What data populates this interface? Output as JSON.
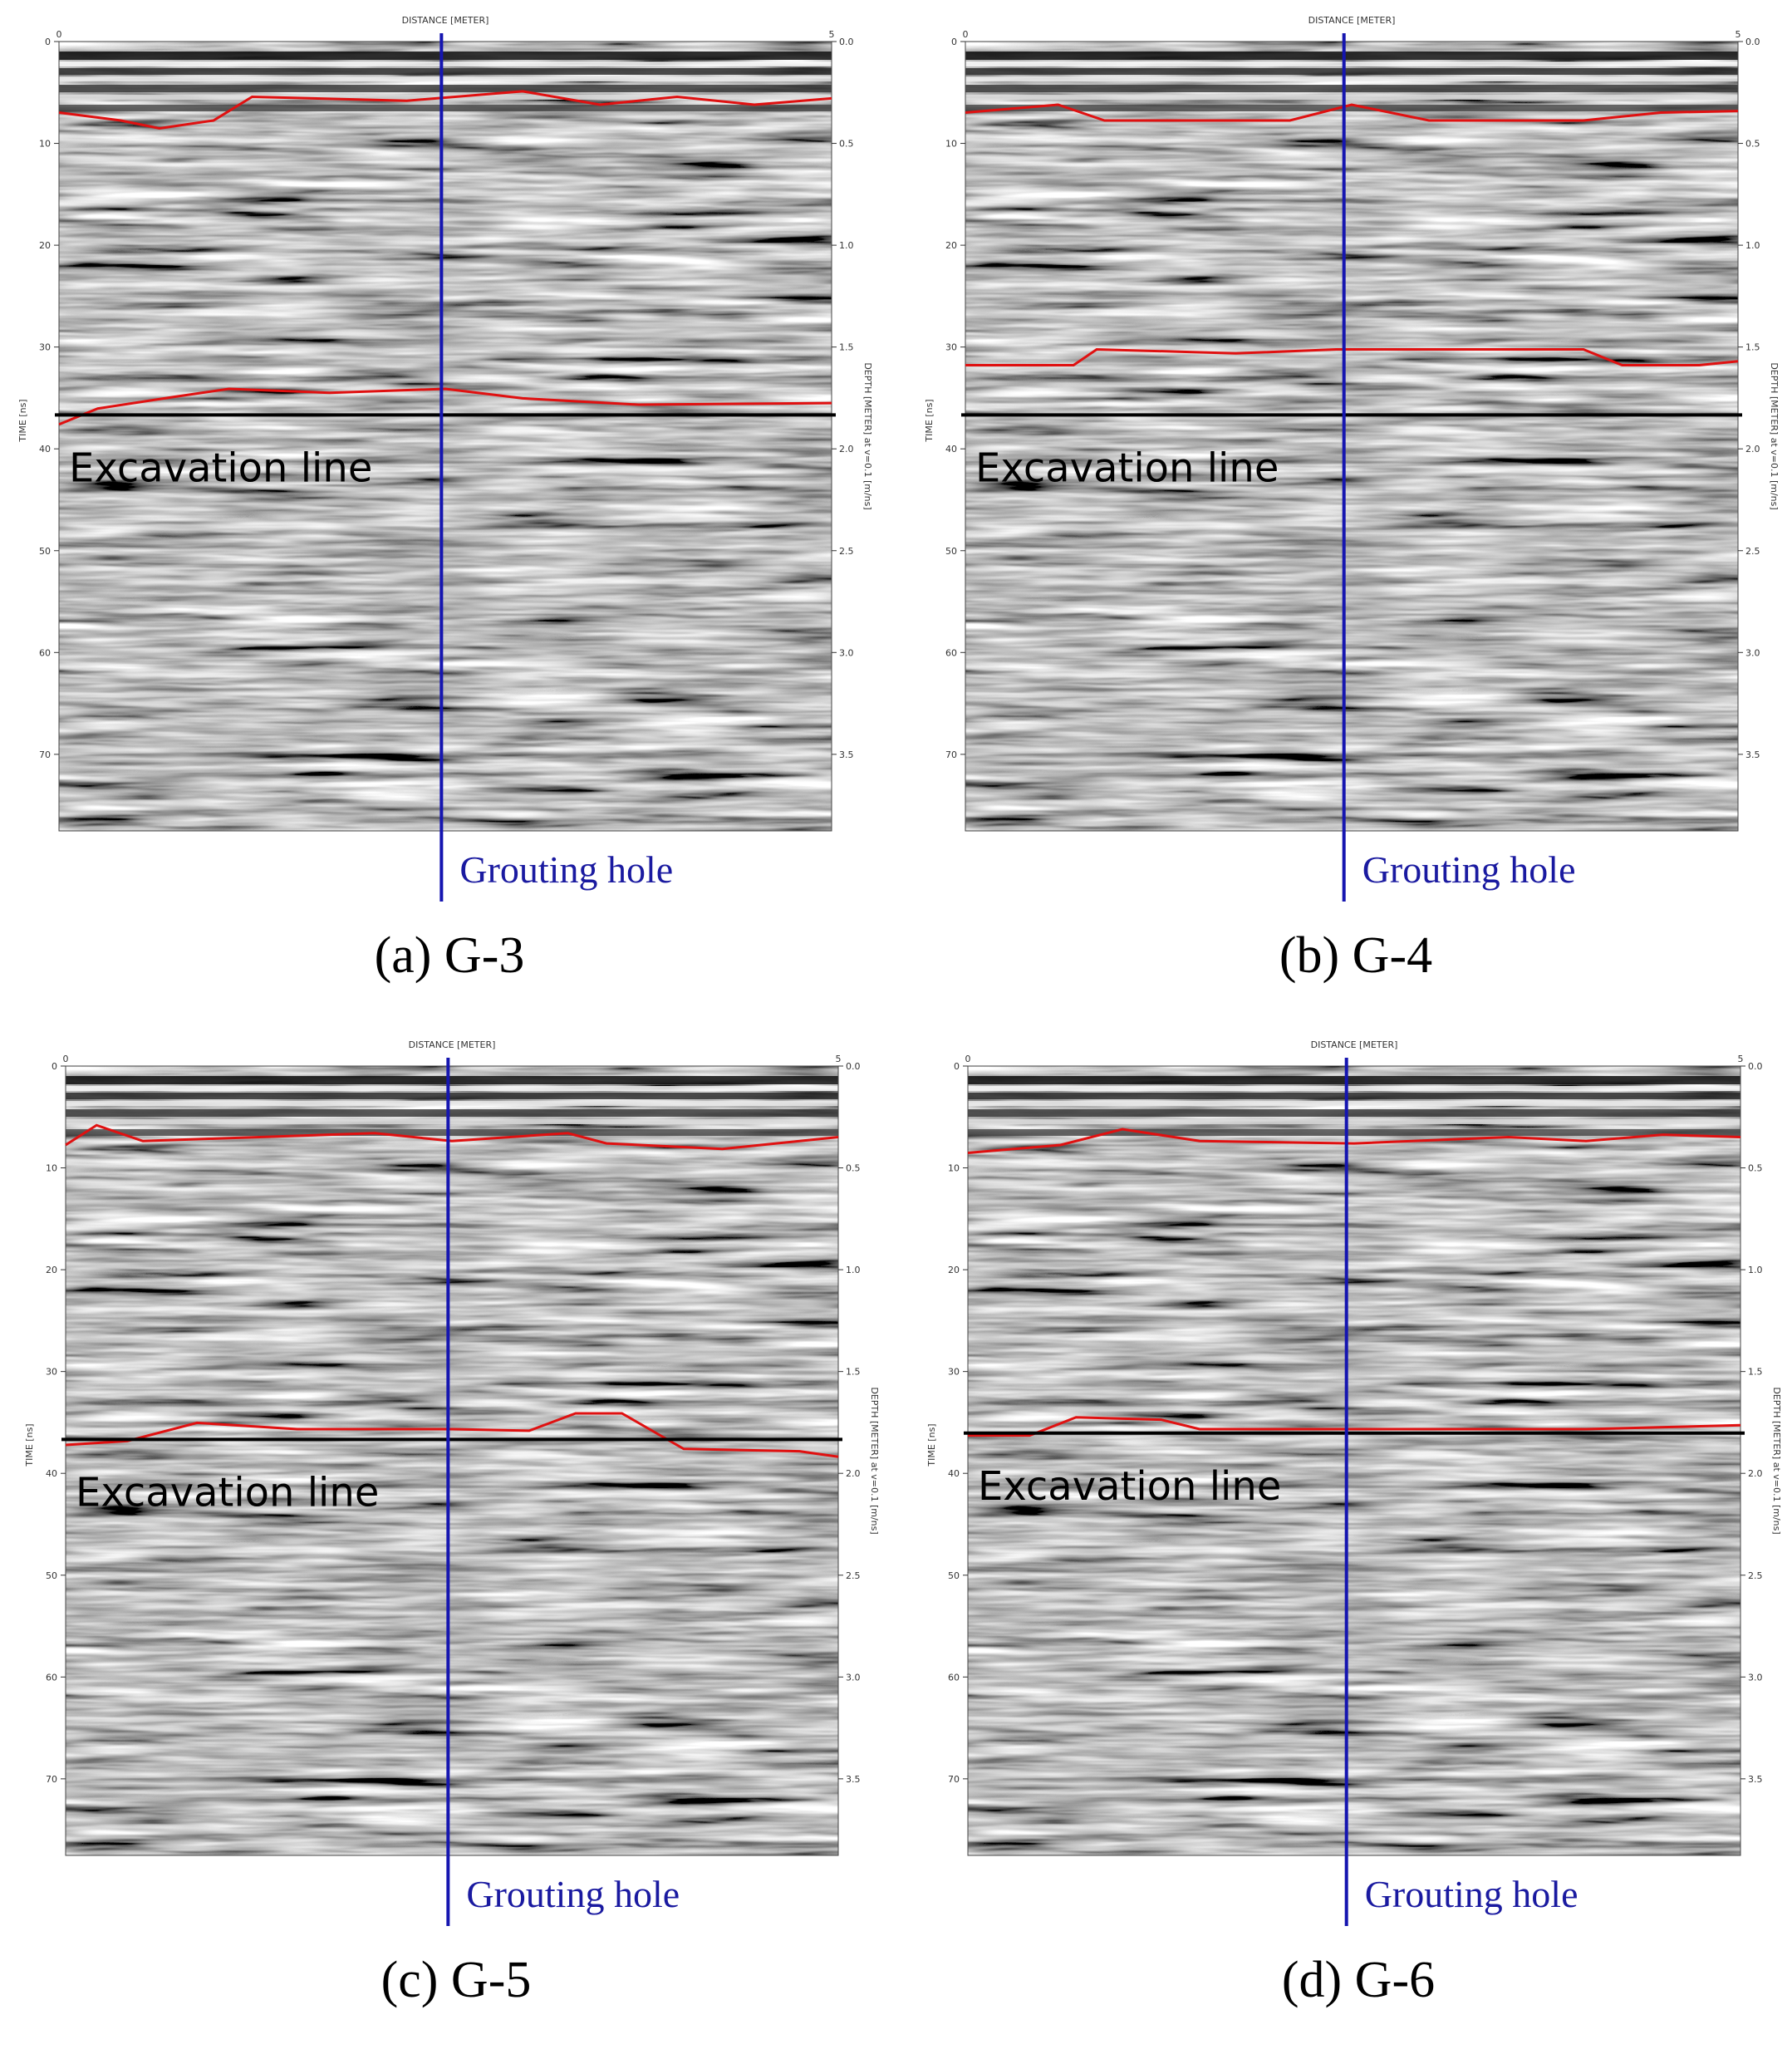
{
  "panels": [
    {
      "caption": "(a) G-3",
      "x_axis_title": "DISTANCE [METER]",
      "y_axis_title": "TIME [ns]",
      "y2_axis_title": "DEPTH [METER] at v=0.1 [m/ns]",
      "x_ticks": [
        "0",
        "5"
      ],
      "y_ticks": [
        "0",
        "10",
        "20",
        "30",
        "40",
        "50",
        "60",
        "70"
      ],
      "y2_ticks": [
        "0.0",
        "0.5",
        "1.0",
        "1.5",
        "2.0",
        "2.5",
        "3.0",
        "3.5"
      ],
      "excavation_label": "Excavation line",
      "grouting_label": "Grouting hole"
    },
    {
      "caption": "(b) G-4",
      "x_axis_title": "DISTANCE [METER]",
      "y_axis_title": "TIME [ns]",
      "y2_axis_title": "DEPTH [METER] at v=0.1 [m/ns]",
      "x_ticks": [
        "0",
        "5"
      ],
      "y_ticks": [
        "0",
        "10",
        "20",
        "30",
        "40",
        "50",
        "60",
        "70"
      ],
      "y2_ticks": [
        "0.0",
        "0.5",
        "1.0",
        "1.5",
        "2.0",
        "2.5",
        "3.0",
        "3.5"
      ],
      "excavation_label": "Excavation line",
      "grouting_label": "Grouting hole"
    },
    {
      "caption": "(c) G-5",
      "x_axis_title": "DISTANCE [METER]",
      "y_axis_title": "TIME [ns]",
      "y2_axis_title": "DEPTH [METER] at v=0.1 [m/ns]",
      "x_ticks": [
        "0",
        "5"
      ],
      "y_ticks": [
        "0",
        "10",
        "20",
        "30",
        "40",
        "50",
        "60",
        "70"
      ],
      "y2_ticks": [
        "0.0",
        "0.5",
        "1.0",
        "1.5",
        "2.0",
        "2.5",
        "3.0",
        "3.5"
      ],
      "excavation_label": "Excavation line",
      "grouting_label": "Grouting hole"
    },
    {
      "caption": "(d) G-6",
      "x_axis_title": "DISTANCE [METER]",
      "y_axis_title": "TIME [ns]",
      "y2_axis_title": "DEPTH [METER] at v=0.1 [m/ns]",
      "x_ticks": [
        "0",
        "5"
      ],
      "y_ticks": [
        "0",
        "10",
        "20",
        "30",
        "40",
        "50",
        "60",
        "70"
      ],
      "y2_ticks": [
        "0.0",
        "0.5",
        "1.0",
        "1.5",
        "2.0",
        "2.5",
        "3.0",
        "3.5"
      ],
      "excavation_label": "Excavation line",
      "grouting_label": "Grouting hole"
    }
  ]
}
